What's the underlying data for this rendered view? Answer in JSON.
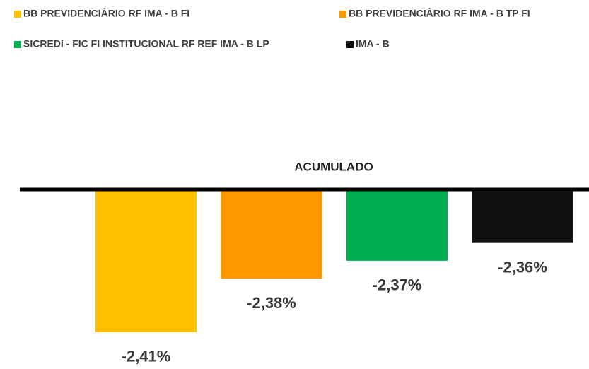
{
  "chart_data": {
    "type": "bar",
    "title": "ACUMULADO",
    "series": [
      {
        "name": "BB PREVIDENCIÁRIO RF IMA - B FI",
        "color": "#FFC000",
        "values": [
          -2.41
        ],
        "value_labels": [
          "-2,41%"
        ]
      },
      {
        "name": "BB PREVIDENCIÁRIO RF IMA - B TP FI",
        "color": "#FF9900",
        "values": [
          -2.38
        ],
        "value_labels": [
          "-2,38%"
        ]
      },
      {
        "name": "SICREDI - FIC FI INSTITUCIONAL RF REF IMA - B LP",
        "color": "#00B050",
        "values": [
          -2.37
        ],
        "value_labels": [
          "-2,37%"
        ]
      },
      {
        "name": "IMA - B",
        "color": "#111111",
        "values": [
          -2.36
        ],
        "value_labels": [
          "-2,36%"
        ]
      }
    ],
    "ylim": [
      -2.42,
      -2.33
    ]
  }
}
